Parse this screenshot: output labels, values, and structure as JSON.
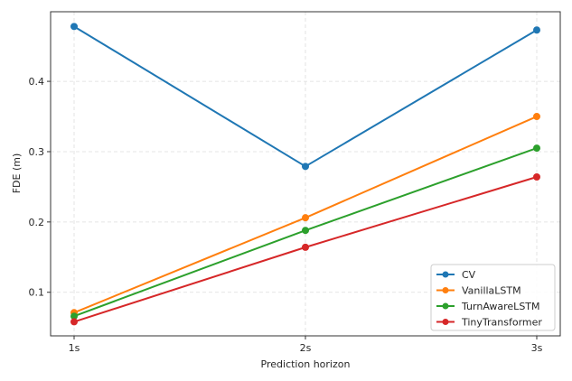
{
  "chart_data": {
    "type": "line",
    "title": "",
    "xlabel": "Prediction horizon",
    "ylabel": "FDE (m)",
    "categories": [
      "1s",
      "2s",
      "3s"
    ],
    "yticks": [
      0.1,
      0.2,
      0.3,
      0.4
    ],
    "ytick_labels": [
      "0.1",
      "0.2",
      "0.3",
      "0.4"
    ],
    "ylim": [
      0.038,
      0.499
    ],
    "grid": true,
    "legend_position": "lower right",
    "series": [
      {
        "name": "CV",
        "color": "#1f77b4",
        "values": [
          0.478,
          0.279,
          0.473
        ]
      },
      {
        "name": "VanillaLSTM",
        "color": "#ff7f0e",
        "values": [
          0.071,
          0.206,
          0.35
        ]
      },
      {
        "name": "TurnAwareLSTM",
        "color": "#2ca02c",
        "values": [
          0.066,
          0.188,
          0.305
        ]
      },
      {
        "name": "TinyTransformer",
        "color": "#d62728",
        "values": [
          0.058,
          0.164,
          0.264
        ]
      }
    ]
  }
}
